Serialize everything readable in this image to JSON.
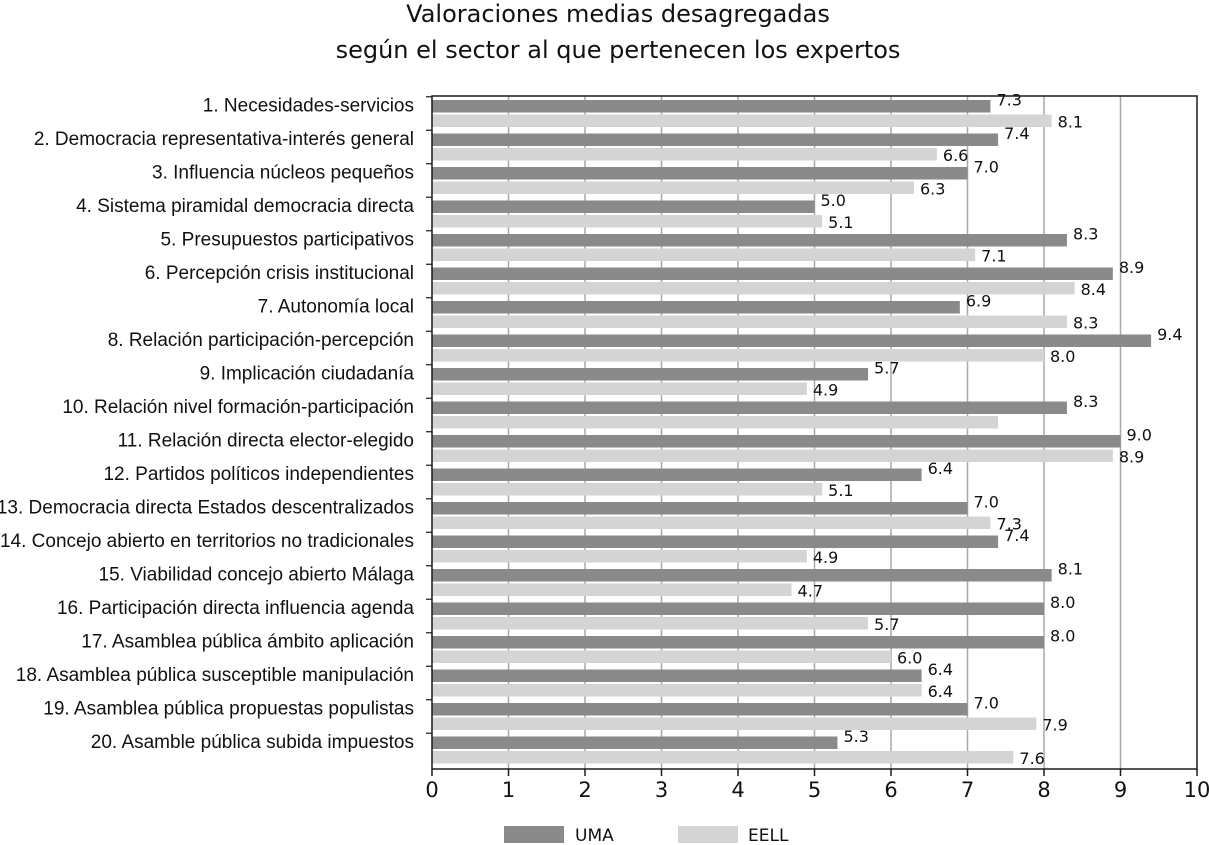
{
  "chart_data": {
    "type": "bar",
    "orientation": "horizontal",
    "title": [
      "Valoraciones medias desagregadas",
      "según el sector al que pertenecen los expertos"
    ],
    "categories": [
      "1. Necesidades-servicios",
      "2. Democracia representativa-interés general",
      "3. Influencia núcleos pequeños",
      "4. Sistema piramidal democracia directa",
      "5. Presupuestos participativos",
      "6. Percepción crisis institucional",
      "7. Autonomía local",
      "8. Relación participación-percepción",
      "9. Implicación ciudadanía",
      "10. Relación nivel formación-participación",
      "11. Relación directa elector-elegido",
      "12. Partidos políticos independientes",
      "13. Democracia directa Estados descentralizados",
      "14. Concejo abierto en territorios no tradicionales",
      "15. Viabilidad concejo abierto Málaga",
      "16. Participación directa influencia agenda",
      "17. Asamblea pública ámbito aplicación",
      "18. Asamblea pública susceptible manipulación",
      "19. Asamblea pública propuestas populistas",
      "20. Asamble pública subida impuestos"
    ],
    "series": [
      {
        "name": "UMA",
        "color": "#8a8a8a",
        "values": [
          7.3,
          7.4,
          7.0,
          5.0,
          8.3,
          8.9,
          6.9,
          9.4,
          5.7,
          8.3,
          9.0,
          6.4,
          7.0,
          7.4,
          8.1,
          8.0,
          8.0,
          6.4,
          7.0,
          5.3
        ],
        "labels": [
          "7.3",
          "7.4",
          "7.0",
          "5.0",
          "8.3",
          "8.9",
          "6.9",
          "9.4",
          "5.7",
          "8.3",
          "9.0",
          "6.4",
          "7.0",
          "7.4",
          "8.1",
          "8.0",
          "8.0",
          "6.4",
          "7.0",
          "5.3"
        ]
      },
      {
        "name": "EELL",
        "color": "#d4d4d4",
        "values": [
          8.1,
          6.6,
          6.3,
          5.1,
          7.1,
          8.4,
          8.3,
          8.0,
          4.9,
          7.4,
          8.9,
          5.1,
          7.3,
          4.9,
          4.7,
          5.7,
          6.0,
          6.4,
          7.9,
          7.6
        ],
        "labels": [
          "8.1",
          "6.6",
          "6.3",
          "5.1",
          "7.1",
          "8.4",
          "8.3",
          "8.0",
          "4.9",
          "",
          "8.9",
          "5.1",
          "7.3",
          "4.9",
          "4.7",
          "5.7",
          "6.0",
          "6.4",
          "7.9",
          "7.6"
        ]
      }
    ],
    "xlim": [
      0,
      10
    ],
    "xticks": [
      "0",
      "1",
      "2",
      "3",
      "4",
      "5",
      "6",
      "7",
      "8",
      "9",
      "10"
    ],
    "grid": "vertical",
    "legend": "bottom-center"
  }
}
